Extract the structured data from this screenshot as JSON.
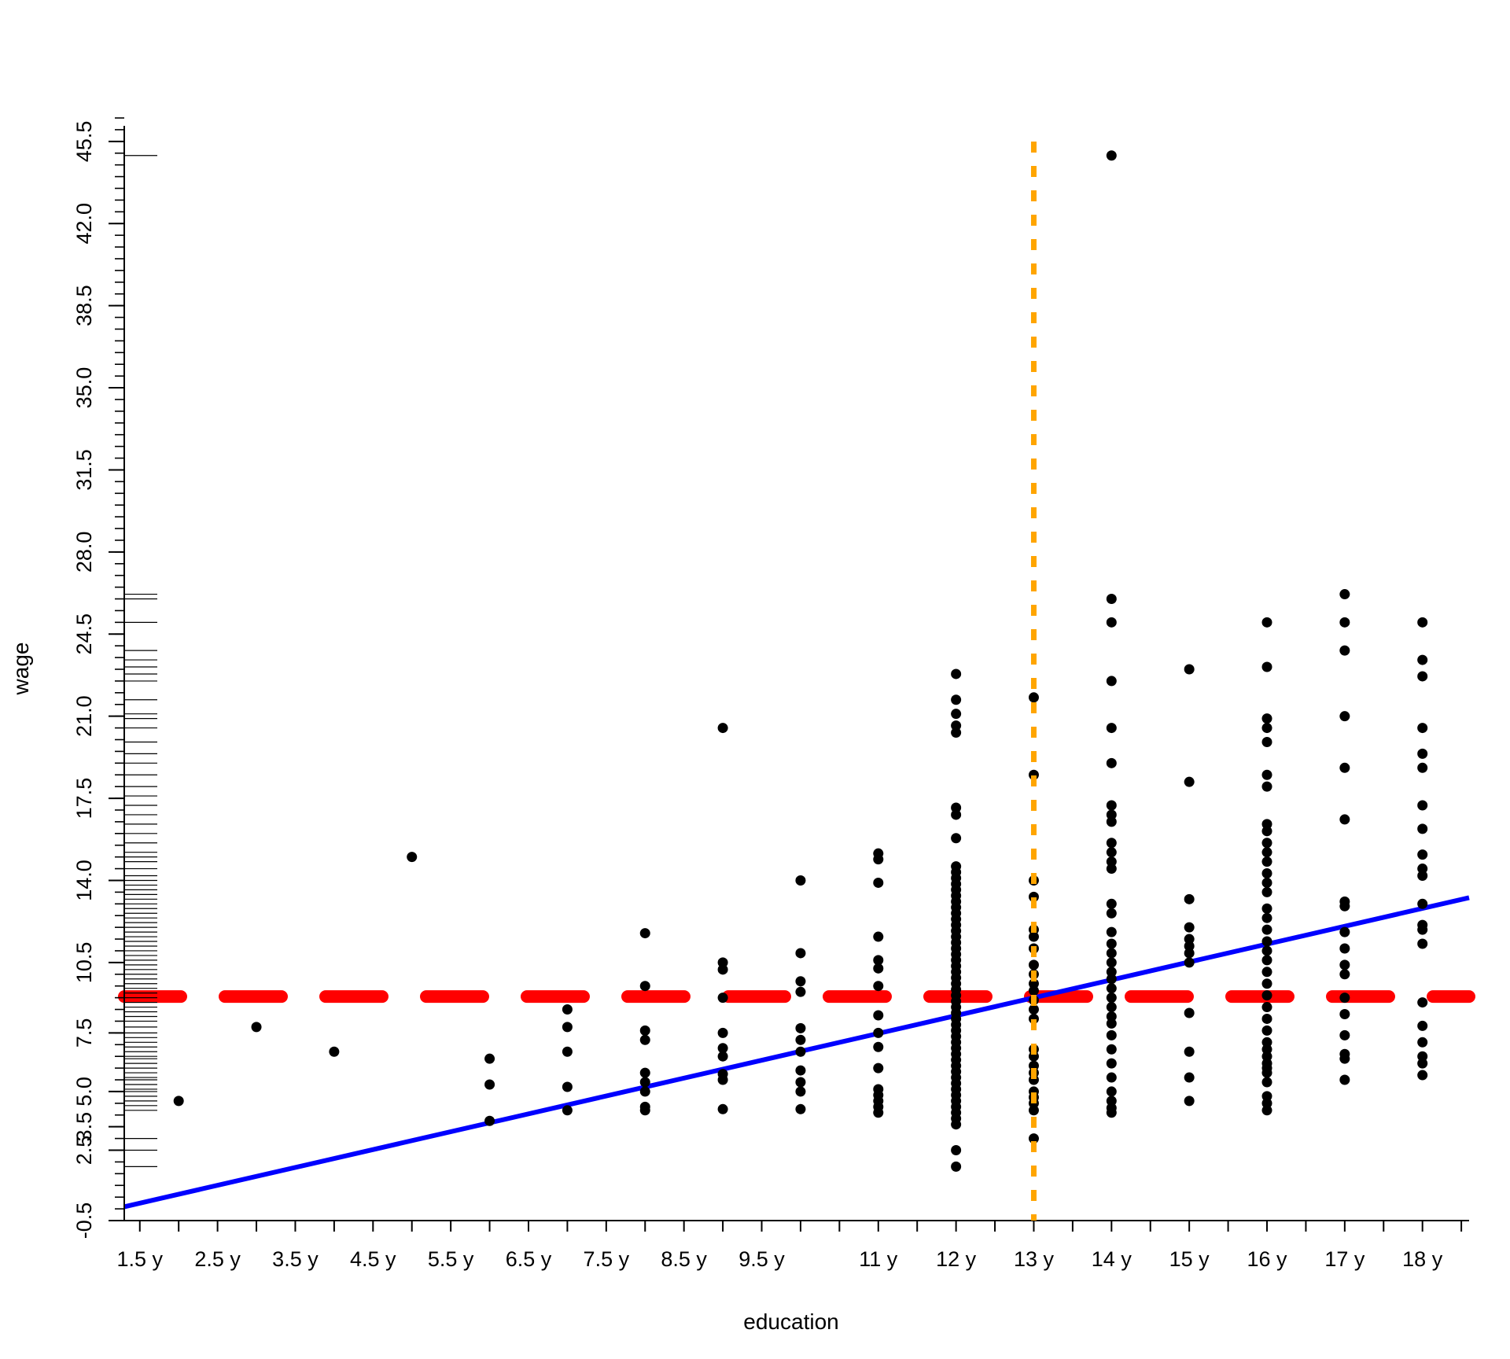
{
  "chart_data": {
    "type": "scatter",
    "title": "",
    "xlabel": "education",
    "ylabel": "wage",
    "xlim": [
      1.3,
      18.6
    ],
    "ylim": [
      -0.5,
      46.5
    ],
    "x_ticks": [
      1.5,
      2,
      2.5,
      3,
      3.5,
      4,
      4.5,
      5,
      5.5,
      6,
      6.5,
      7,
      7.5,
      8,
      8.5,
      9,
      9.5,
      10,
      10.5,
      11,
      11.5,
      12,
      12.5,
      13,
      13.5,
      14,
      14.5,
      15,
      15.5,
      16,
      16.5,
      17,
      17.5,
      18,
      18.5
    ],
    "x_tick_labels": [
      {
        "x": 1.5,
        "label": "1.5 y"
      },
      {
        "x": 2.5,
        "label": "2.5 y"
      },
      {
        "x": 3.5,
        "label": "3.5 y"
      },
      {
        "x": 4.5,
        "label": "4.5 y"
      },
      {
        "x": 5.5,
        "label": "5.5 y"
      },
      {
        "x": 6.5,
        "label": "6.5 y"
      },
      {
        "x": 7.5,
        "label": "7.5 y"
      },
      {
        "x": 8.5,
        "label": "8.5 y"
      },
      {
        "x": 9.5,
        "label": "9.5 y"
      },
      {
        "x": 11,
        "label": "11 y"
      },
      {
        "x": 12,
        "label": "12 y"
      },
      {
        "x": 13,
        "label": "13 y"
      },
      {
        "x": 14,
        "label": "14 y"
      },
      {
        "x": 15,
        "label": "15 y"
      },
      {
        "x": 16,
        "label": "16 y"
      },
      {
        "x": 17,
        "label": "17 y"
      },
      {
        "x": 18,
        "label": "18 y"
      }
    ],
    "y_major_ticks": [
      {
        "y": -0.5,
        "label": "-0.5"
      },
      {
        "y": 2.5,
        "label": "2.5"
      },
      {
        "y": 3.5,
        "label": "3.5"
      },
      {
        "y": 5.0,
        "label": "5.0"
      },
      {
        "y": 7.5,
        "label": "7.5"
      },
      {
        "y": 10.5,
        "label": "10.5"
      },
      {
        "y": 14.0,
        "label": "14.0"
      },
      {
        "y": 17.5,
        "label": "17.5"
      },
      {
        "y": 21.0,
        "label": "21.0"
      },
      {
        "y": 24.5,
        "label": "24.5"
      },
      {
        "y": 28.0,
        "label": "28.0"
      },
      {
        "y": 31.5,
        "label": "31.5"
      },
      {
        "y": 35.0,
        "label": "35.0"
      },
      {
        "y": 38.5,
        "label": "38.5"
      },
      {
        "y": 42.0,
        "label": "42.0"
      },
      {
        "y": 45.5,
        "label": "45.5"
      }
    ],
    "y_minor_step": 0.5,
    "points": [
      {
        "x": 2,
        "y": 4.6
      },
      {
        "x": 3,
        "y": 7.75
      },
      {
        "x": 4,
        "y": 6.7
      },
      {
        "x": 5,
        "y": 15.0
      },
      {
        "x": 6,
        "y": 3.75
      },
      {
        "x": 6,
        "y": 5.3
      },
      {
        "x": 6,
        "y": 6.4
      },
      {
        "x": 7,
        "y": 4.2
      },
      {
        "x": 7,
        "y": 5.2
      },
      {
        "x": 7,
        "y": 6.7
      },
      {
        "x": 7,
        "y": 7.75
      },
      {
        "x": 7,
        "y": 8.5
      },
      {
        "x": 8,
        "y": 4.2
      },
      {
        "x": 8,
        "y": 4.35
      },
      {
        "x": 8,
        "y": 5.0
      },
      {
        "x": 8,
        "y": 5.4
      },
      {
        "x": 8,
        "y": 5.8
      },
      {
        "x": 8,
        "y": 7.2
      },
      {
        "x": 8,
        "y": 7.6
      },
      {
        "x": 8,
        "y": 9.5
      },
      {
        "x": 8,
        "y": 11.75
      },
      {
        "x": 9,
        "y": 4.25
      },
      {
        "x": 9,
        "y": 5.5
      },
      {
        "x": 9,
        "y": 5.75
      },
      {
        "x": 9,
        "y": 6.5
      },
      {
        "x": 9,
        "y": 6.85
      },
      {
        "x": 9,
        "y": 7.5
      },
      {
        "x": 9,
        "y": 9.0
      },
      {
        "x": 9,
        "y": 10.2
      },
      {
        "x": 9,
        "y": 10.5
      },
      {
        "x": 9,
        "y": 20.5
      },
      {
        "x": 10,
        "y": 4.25
      },
      {
        "x": 10,
        "y": 5.0
      },
      {
        "x": 10,
        "y": 5.4
      },
      {
        "x": 10,
        "y": 5.9
      },
      {
        "x": 10,
        "y": 6.7
      },
      {
        "x": 10,
        "y": 7.2
      },
      {
        "x": 10,
        "y": 7.7
      },
      {
        "x": 10,
        "y": 9.25
      },
      {
        "x": 10,
        "y": 9.7
      },
      {
        "x": 10,
        "y": 10.9
      },
      {
        "x": 10,
        "y": 14.0
      },
      {
        "x": 11,
        "y": 4.1
      },
      {
        "x": 11,
        "y": 4.35
      },
      {
        "x": 11,
        "y": 4.6
      },
      {
        "x": 11,
        "y": 4.85
      },
      {
        "x": 11,
        "y": 5.1
      },
      {
        "x": 11,
        "y": 6.0
      },
      {
        "x": 11,
        "y": 6.9
      },
      {
        "x": 11,
        "y": 7.5
      },
      {
        "x": 11,
        "y": 8.25
      },
      {
        "x": 11,
        "y": 9.5
      },
      {
        "x": 11,
        "y": 10.25
      },
      {
        "x": 11,
        "y": 10.6
      },
      {
        "x": 11,
        "y": 11.6
      },
      {
        "x": 11,
        "y": 13.9
      },
      {
        "x": 11,
        "y": 14.9
      },
      {
        "x": 11,
        "y": 15.15
      },
      {
        "x": 12,
        "y": 1.8
      },
      {
        "x": 12,
        "y": 2.5
      },
      {
        "x": 12,
        "y": 3.6
      },
      {
        "x": 12,
        "y": 3.85
      },
      {
        "x": 12,
        "y": 4.1
      },
      {
        "x": 12,
        "y": 4.35
      },
      {
        "x": 12,
        "y": 4.6
      },
      {
        "x": 12,
        "y": 4.85
      },
      {
        "x": 12,
        "y": 5.1
      },
      {
        "x": 12,
        "y": 5.35
      },
      {
        "x": 12,
        "y": 5.6
      },
      {
        "x": 12,
        "y": 5.85
      },
      {
        "x": 12,
        "y": 6.1
      },
      {
        "x": 12,
        "y": 6.35
      },
      {
        "x": 12,
        "y": 6.6
      },
      {
        "x": 12,
        "y": 6.85
      },
      {
        "x": 12,
        "y": 7.1
      },
      {
        "x": 12,
        "y": 7.35
      },
      {
        "x": 12,
        "y": 7.6
      },
      {
        "x": 12,
        "y": 7.85
      },
      {
        "x": 12,
        "y": 8.1
      },
      {
        "x": 12,
        "y": 8.35
      },
      {
        "x": 12,
        "y": 8.6
      },
      {
        "x": 12,
        "y": 8.85
      },
      {
        "x": 12,
        "y": 9.1
      },
      {
        "x": 12,
        "y": 9.35
      },
      {
        "x": 12,
        "y": 9.6
      },
      {
        "x": 12,
        "y": 9.85
      },
      {
        "x": 12,
        "y": 10.1
      },
      {
        "x": 12,
        "y": 10.35
      },
      {
        "x": 12,
        "y": 10.6
      },
      {
        "x": 12,
        "y": 10.85
      },
      {
        "x": 12,
        "y": 11.1
      },
      {
        "x": 12,
        "y": 11.35
      },
      {
        "x": 12,
        "y": 11.6
      },
      {
        "x": 12,
        "y": 11.85
      },
      {
        "x": 12,
        "y": 12.1
      },
      {
        "x": 12,
        "y": 12.35
      },
      {
        "x": 12,
        "y": 12.6
      },
      {
        "x": 12,
        "y": 12.85
      },
      {
        "x": 12,
        "y": 13.1
      },
      {
        "x": 12,
        "y": 13.35
      },
      {
        "x": 12,
        "y": 13.6
      },
      {
        "x": 12,
        "y": 13.85
      },
      {
        "x": 12,
        "y": 14.1
      },
      {
        "x": 12,
        "y": 14.35
      },
      {
        "x": 12,
        "y": 14.6
      },
      {
        "x": 12,
        "y": 15.8
      },
      {
        "x": 12,
        "y": 16.8
      },
      {
        "x": 12,
        "y": 17.1
      },
      {
        "x": 12,
        "y": 20.3
      },
      {
        "x": 12,
        "y": 20.6
      },
      {
        "x": 12,
        "y": 21.1
      },
      {
        "x": 12,
        "y": 21.7
      },
      {
        "x": 12,
        "y": 22.8
      },
      {
        "x": 13,
        "y": 3.0
      },
      {
        "x": 13,
        "y": 4.2
      },
      {
        "x": 13,
        "y": 4.5
      },
      {
        "x": 13,
        "y": 4.75
      },
      {
        "x": 13,
        "y": 5.0
      },
      {
        "x": 13,
        "y": 5.5
      },
      {
        "x": 13,
        "y": 5.8
      },
      {
        "x": 13,
        "y": 6.1
      },
      {
        "x": 13,
        "y": 6.5
      },
      {
        "x": 13,
        "y": 6.8
      },
      {
        "x": 13,
        "y": 8.1
      },
      {
        "x": 13,
        "y": 8.5
      },
      {
        "x": 13,
        "y": 8.9
      },
      {
        "x": 13,
        "y": 9.3
      },
      {
        "x": 13,
        "y": 9.6
      },
      {
        "x": 13,
        "y": 10.0
      },
      {
        "x": 13,
        "y": 10.4
      },
      {
        "x": 13,
        "y": 11.1
      },
      {
        "x": 13,
        "y": 11.6
      },
      {
        "x": 13,
        "y": 11.9
      },
      {
        "x": 13,
        "y": 13.3
      },
      {
        "x": 13,
        "y": 14.0
      },
      {
        "x": 13,
        "y": 18.5
      },
      {
        "x": 13,
        "y": 21.8
      },
      {
        "x": 14,
        "y": 4.1
      },
      {
        "x": 14,
        "y": 4.3
      },
      {
        "x": 14,
        "y": 4.6
      },
      {
        "x": 14,
        "y": 5.0
      },
      {
        "x": 14,
        "y": 5.6
      },
      {
        "x": 14,
        "y": 6.2
      },
      {
        "x": 14,
        "y": 6.8
      },
      {
        "x": 14,
        "y": 7.4
      },
      {
        "x": 14,
        "y": 7.9
      },
      {
        "x": 14,
        "y": 8.2
      },
      {
        "x": 14,
        "y": 8.6
      },
      {
        "x": 14,
        "y": 9.0
      },
      {
        "x": 14,
        "y": 9.4
      },
      {
        "x": 14,
        "y": 9.8
      },
      {
        "x": 14,
        "y": 10.1
      },
      {
        "x": 14,
        "y": 10.5
      },
      {
        "x": 14,
        "y": 10.9
      },
      {
        "x": 14,
        "y": 11.3
      },
      {
        "x": 14,
        "y": 11.8
      },
      {
        "x": 14,
        "y": 12.6
      },
      {
        "x": 14,
        "y": 13.0
      },
      {
        "x": 14,
        "y": 14.5
      },
      {
        "x": 14,
        "y": 14.8
      },
      {
        "x": 14,
        "y": 15.2
      },
      {
        "x": 14,
        "y": 15.6
      },
      {
        "x": 14,
        "y": 16.5
      },
      {
        "x": 14,
        "y": 16.8
      },
      {
        "x": 14,
        "y": 17.2
      },
      {
        "x": 14,
        "y": 19.0
      },
      {
        "x": 14,
        "y": 20.5
      },
      {
        "x": 14,
        "y": 22.5
      },
      {
        "x": 14,
        "y": 25.0
      },
      {
        "x": 14,
        "y": 26.0
      },
      {
        "x": 14,
        "y": 44.9
      },
      {
        "x": 15,
        "y": 4.6
      },
      {
        "x": 15,
        "y": 5.6
      },
      {
        "x": 15,
        "y": 6.7
      },
      {
        "x": 15,
        "y": 8.35
      },
      {
        "x": 15,
        "y": 10.5
      },
      {
        "x": 15,
        "y": 10.9
      },
      {
        "x": 15,
        "y": 11.2
      },
      {
        "x": 15,
        "y": 11.5
      },
      {
        "x": 15,
        "y": 12.0
      },
      {
        "x": 15,
        "y": 13.2
      },
      {
        "x": 15,
        "y": 18.2
      },
      {
        "x": 15,
        "y": 23.0
      },
      {
        "x": 16,
        "y": 4.2
      },
      {
        "x": 16,
        "y": 4.5
      },
      {
        "x": 16,
        "y": 4.8
      },
      {
        "x": 16,
        "y": 5.4
      },
      {
        "x": 16,
        "y": 5.8
      },
      {
        "x": 16,
        "y": 6.0
      },
      {
        "x": 16,
        "y": 6.2
      },
      {
        "x": 16,
        "y": 6.5
      },
      {
        "x": 16,
        "y": 6.8
      },
      {
        "x": 16,
        "y": 7.1
      },
      {
        "x": 16,
        "y": 7.6
      },
      {
        "x": 16,
        "y": 8.1
      },
      {
        "x": 16,
        "y": 8.6
      },
      {
        "x": 16,
        "y": 9.1
      },
      {
        "x": 16,
        "y": 9.6
      },
      {
        "x": 16,
        "y": 10.1
      },
      {
        "x": 16,
        "y": 10.6
      },
      {
        "x": 16,
        "y": 11.0
      },
      {
        "x": 16,
        "y": 11.4
      },
      {
        "x": 16,
        "y": 11.9
      },
      {
        "x": 16,
        "y": 12.4
      },
      {
        "x": 16,
        "y": 12.8
      },
      {
        "x": 16,
        "y": 13.5
      },
      {
        "x": 16,
        "y": 13.9
      },
      {
        "x": 16,
        "y": 14.3
      },
      {
        "x": 16,
        "y": 14.8
      },
      {
        "x": 16,
        "y": 15.2
      },
      {
        "x": 16,
        "y": 15.6
      },
      {
        "x": 16,
        "y": 16.1
      },
      {
        "x": 16,
        "y": 16.4
      },
      {
        "x": 16,
        "y": 18.0
      },
      {
        "x": 16,
        "y": 18.5
      },
      {
        "x": 16,
        "y": 19.9
      },
      {
        "x": 16,
        "y": 20.5
      },
      {
        "x": 16,
        "y": 20.9
      },
      {
        "x": 16,
        "y": 23.1
      },
      {
        "x": 16,
        "y": 25.0
      },
      {
        "x": 17,
        "y": 5.5
      },
      {
        "x": 17,
        "y": 6.4
      },
      {
        "x": 17,
        "y": 6.6
      },
      {
        "x": 17,
        "y": 7.4
      },
      {
        "x": 17,
        "y": 8.3
      },
      {
        "x": 17,
        "y": 9.0
      },
      {
        "x": 17,
        "y": 10.0
      },
      {
        "x": 17,
        "y": 10.4
      },
      {
        "x": 17,
        "y": 11.1
      },
      {
        "x": 17,
        "y": 11.8
      },
      {
        "x": 17,
        "y": 12.9
      },
      {
        "x": 17,
        "y": 13.1
      },
      {
        "x": 17,
        "y": 16.6
      },
      {
        "x": 17,
        "y": 18.8
      },
      {
        "x": 17,
        "y": 21.0
      },
      {
        "x": 17,
        "y": 23.8
      },
      {
        "x": 17,
        "y": 25.0
      },
      {
        "x": 17,
        "y": 26.2
      },
      {
        "x": 18,
        "y": 5.7
      },
      {
        "x": 18,
        "y": 6.2
      },
      {
        "x": 18,
        "y": 6.5
      },
      {
        "x": 18,
        "y": 7.1
      },
      {
        "x": 18,
        "y": 7.8
      },
      {
        "x": 18,
        "y": 8.8
      },
      {
        "x": 18,
        "y": 11.3
      },
      {
        "x": 18,
        "y": 11.9
      },
      {
        "x": 18,
        "y": 12.1
      },
      {
        "x": 18,
        "y": 13.0
      },
      {
        "x": 18,
        "y": 14.2
      },
      {
        "x": 18,
        "y": 14.5
      },
      {
        "x": 18,
        "y": 15.1
      },
      {
        "x": 18,
        "y": 16.2
      },
      {
        "x": 18,
        "y": 17.2
      },
      {
        "x": 18,
        "y": 18.8
      },
      {
        "x": 18,
        "y": 19.4
      },
      {
        "x": 18,
        "y": 20.5
      },
      {
        "x": 18,
        "y": 22.7
      },
      {
        "x": 18,
        "y": 23.4
      },
      {
        "x": 18,
        "y": 25.0
      }
    ],
    "rug_y": [
      1.8,
      2.5,
      3.0,
      4.2,
      4.4,
      4.6,
      4.8,
      5.0,
      5.1,
      5.3,
      5.5,
      5.6,
      5.8,
      6.0,
      6.2,
      6.4,
      6.5,
      6.7,
      6.9,
      7.1,
      7.3,
      7.5,
      7.75,
      8.0,
      8.2,
      8.4,
      8.6,
      8.8,
      9.0,
      9.2,
      9.4,
      9.6,
      9.8,
      10.0,
      10.2,
      10.4,
      10.6,
      10.8,
      11.0,
      11.2,
      11.4,
      11.6,
      11.8,
      12.0,
      12.2,
      12.4,
      12.6,
      12.8,
      13.0,
      13.2,
      13.4,
      13.6,
      13.8,
      14.0,
      14.2,
      14.5,
      14.8,
      15.0,
      15.2,
      15.6,
      16.0,
      16.4,
      16.8,
      17.2,
      17.6,
      18.0,
      18.5,
      19.0,
      19.4,
      19.9,
      20.5,
      20.9,
      21.1,
      21.7,
      22.5,
      22.8,
      23.1,
      23.4,
      23.8,
      25.0,
      26.0,
      26.2,
      44.9
    ],
    "reference_lines": [
      {
        "kind": "horizontal",
        "y": 9.05,
        "color": "#ff0000",
        "style": "dashed"
      },
      {
        "kind": "vertical",
        "x": 13.0,
        "color": "#ffa500",
        "style": "dotted"
      },
      {
        "kind": "regression",
        "color": "#0000ff",
        "style": "solid",
        "intercept": -0.9,
        "slope": 0.7615
      }
    ],
    "grid": false,
    "legend": "none"
  }
}
